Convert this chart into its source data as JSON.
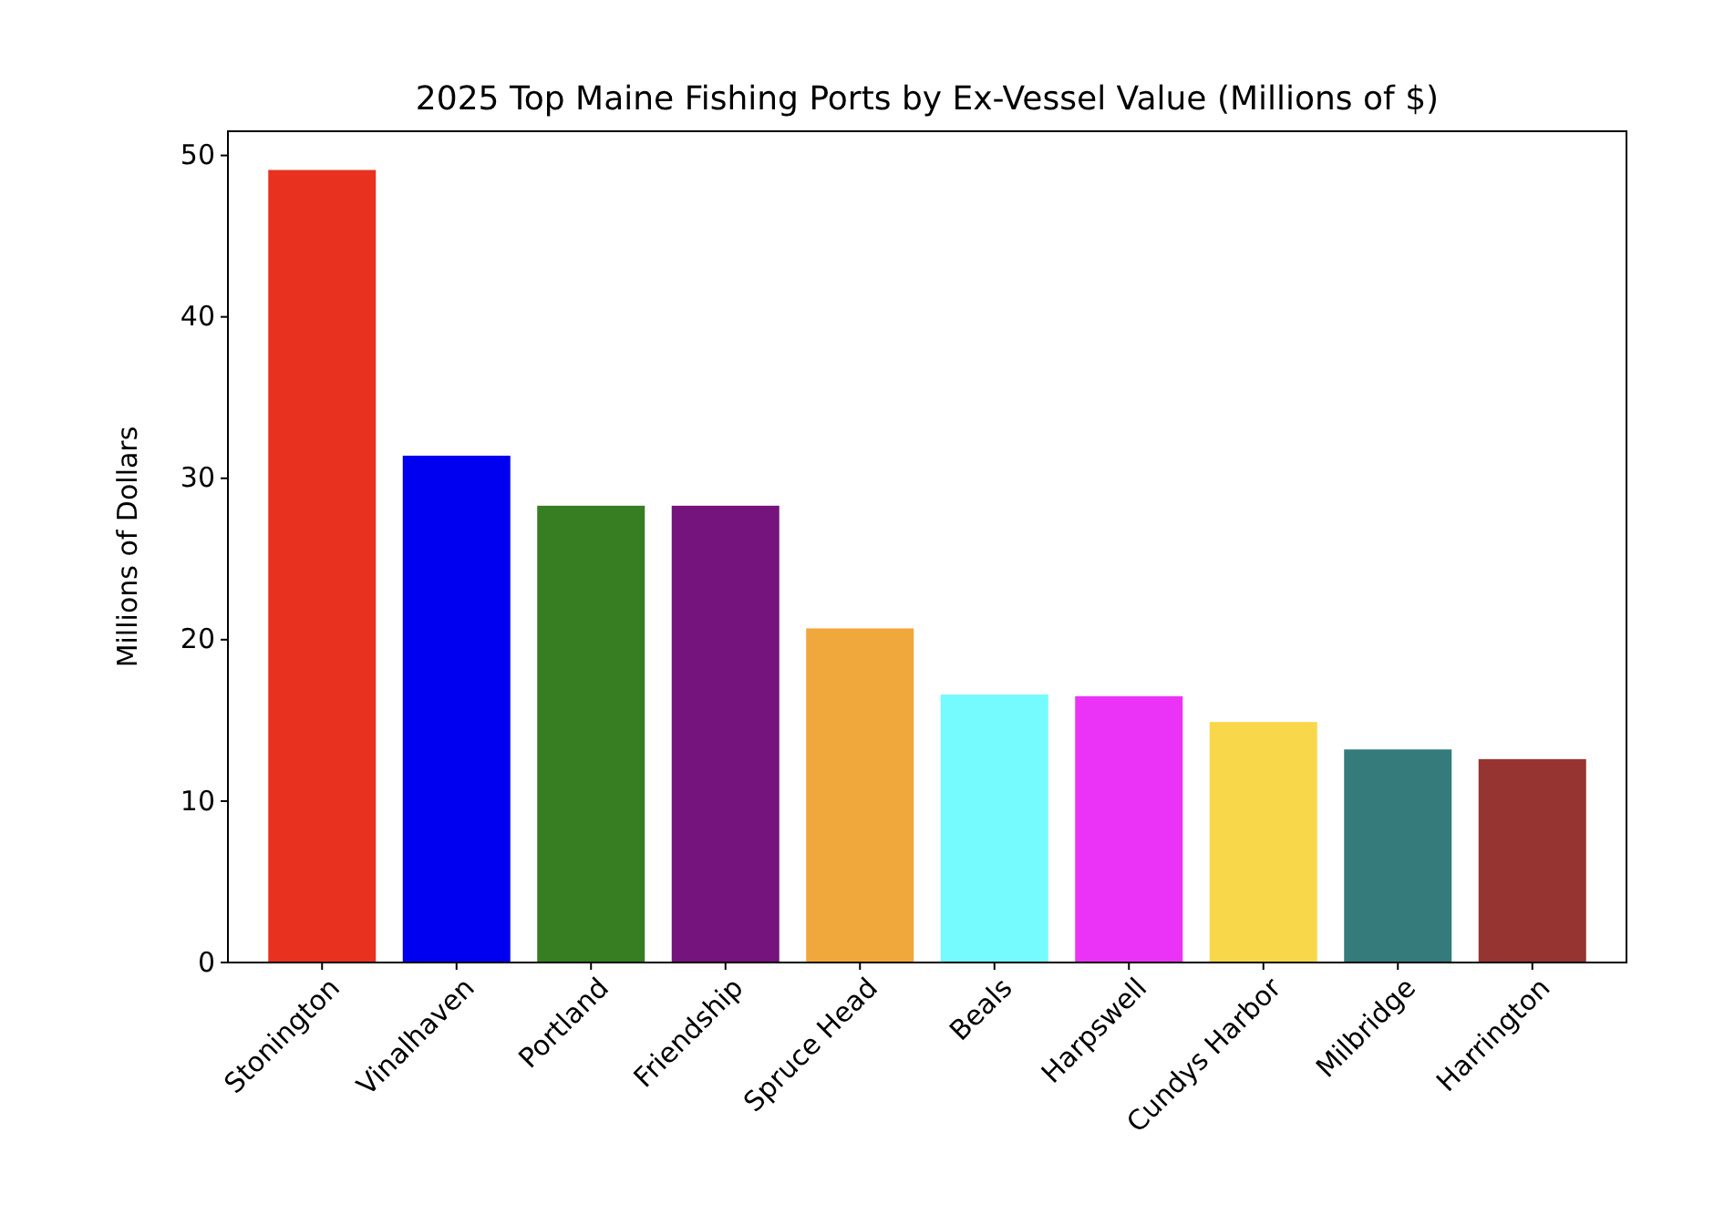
{
  "chart_data": {
    "type": "bar",
    "title": "2025 Top Maine Fishing Ports by Ex-Vessel Value (Millions of $)",
    "ylabel": "Millions of Dollars",
    "categories": [
      "Stonington",
      "Vinalhaven",
      "Portland",
      "Friendship",
      "Spruce Head",
      "Beals",
      "Harpswell",
      "Cundys Harbor",
      "Milbridge",
      "Harrington"
    ],
    "values": [
      49.1,
      31.4,
      28.3,
      28.3,
      20.7,
      16.6,
      16.5,
      14.9,
      13.2,
      12.6
    ],
    "colors": [
      "#e8321f",
      "#0000f0",
      "#377d22",
      "#75147c",
      "#f0a83c",
      "#75fbfd",
      "#ea33f7",
      "#f8d84a",
      "#367b7b",
      "#963431"
    ],
    "ylim": [
      0,
      51.5
    ],
    "yticks": [
      0,
      10,
      20,
      30,
      40,
      50
    ],
    "grid": false
  }
}
